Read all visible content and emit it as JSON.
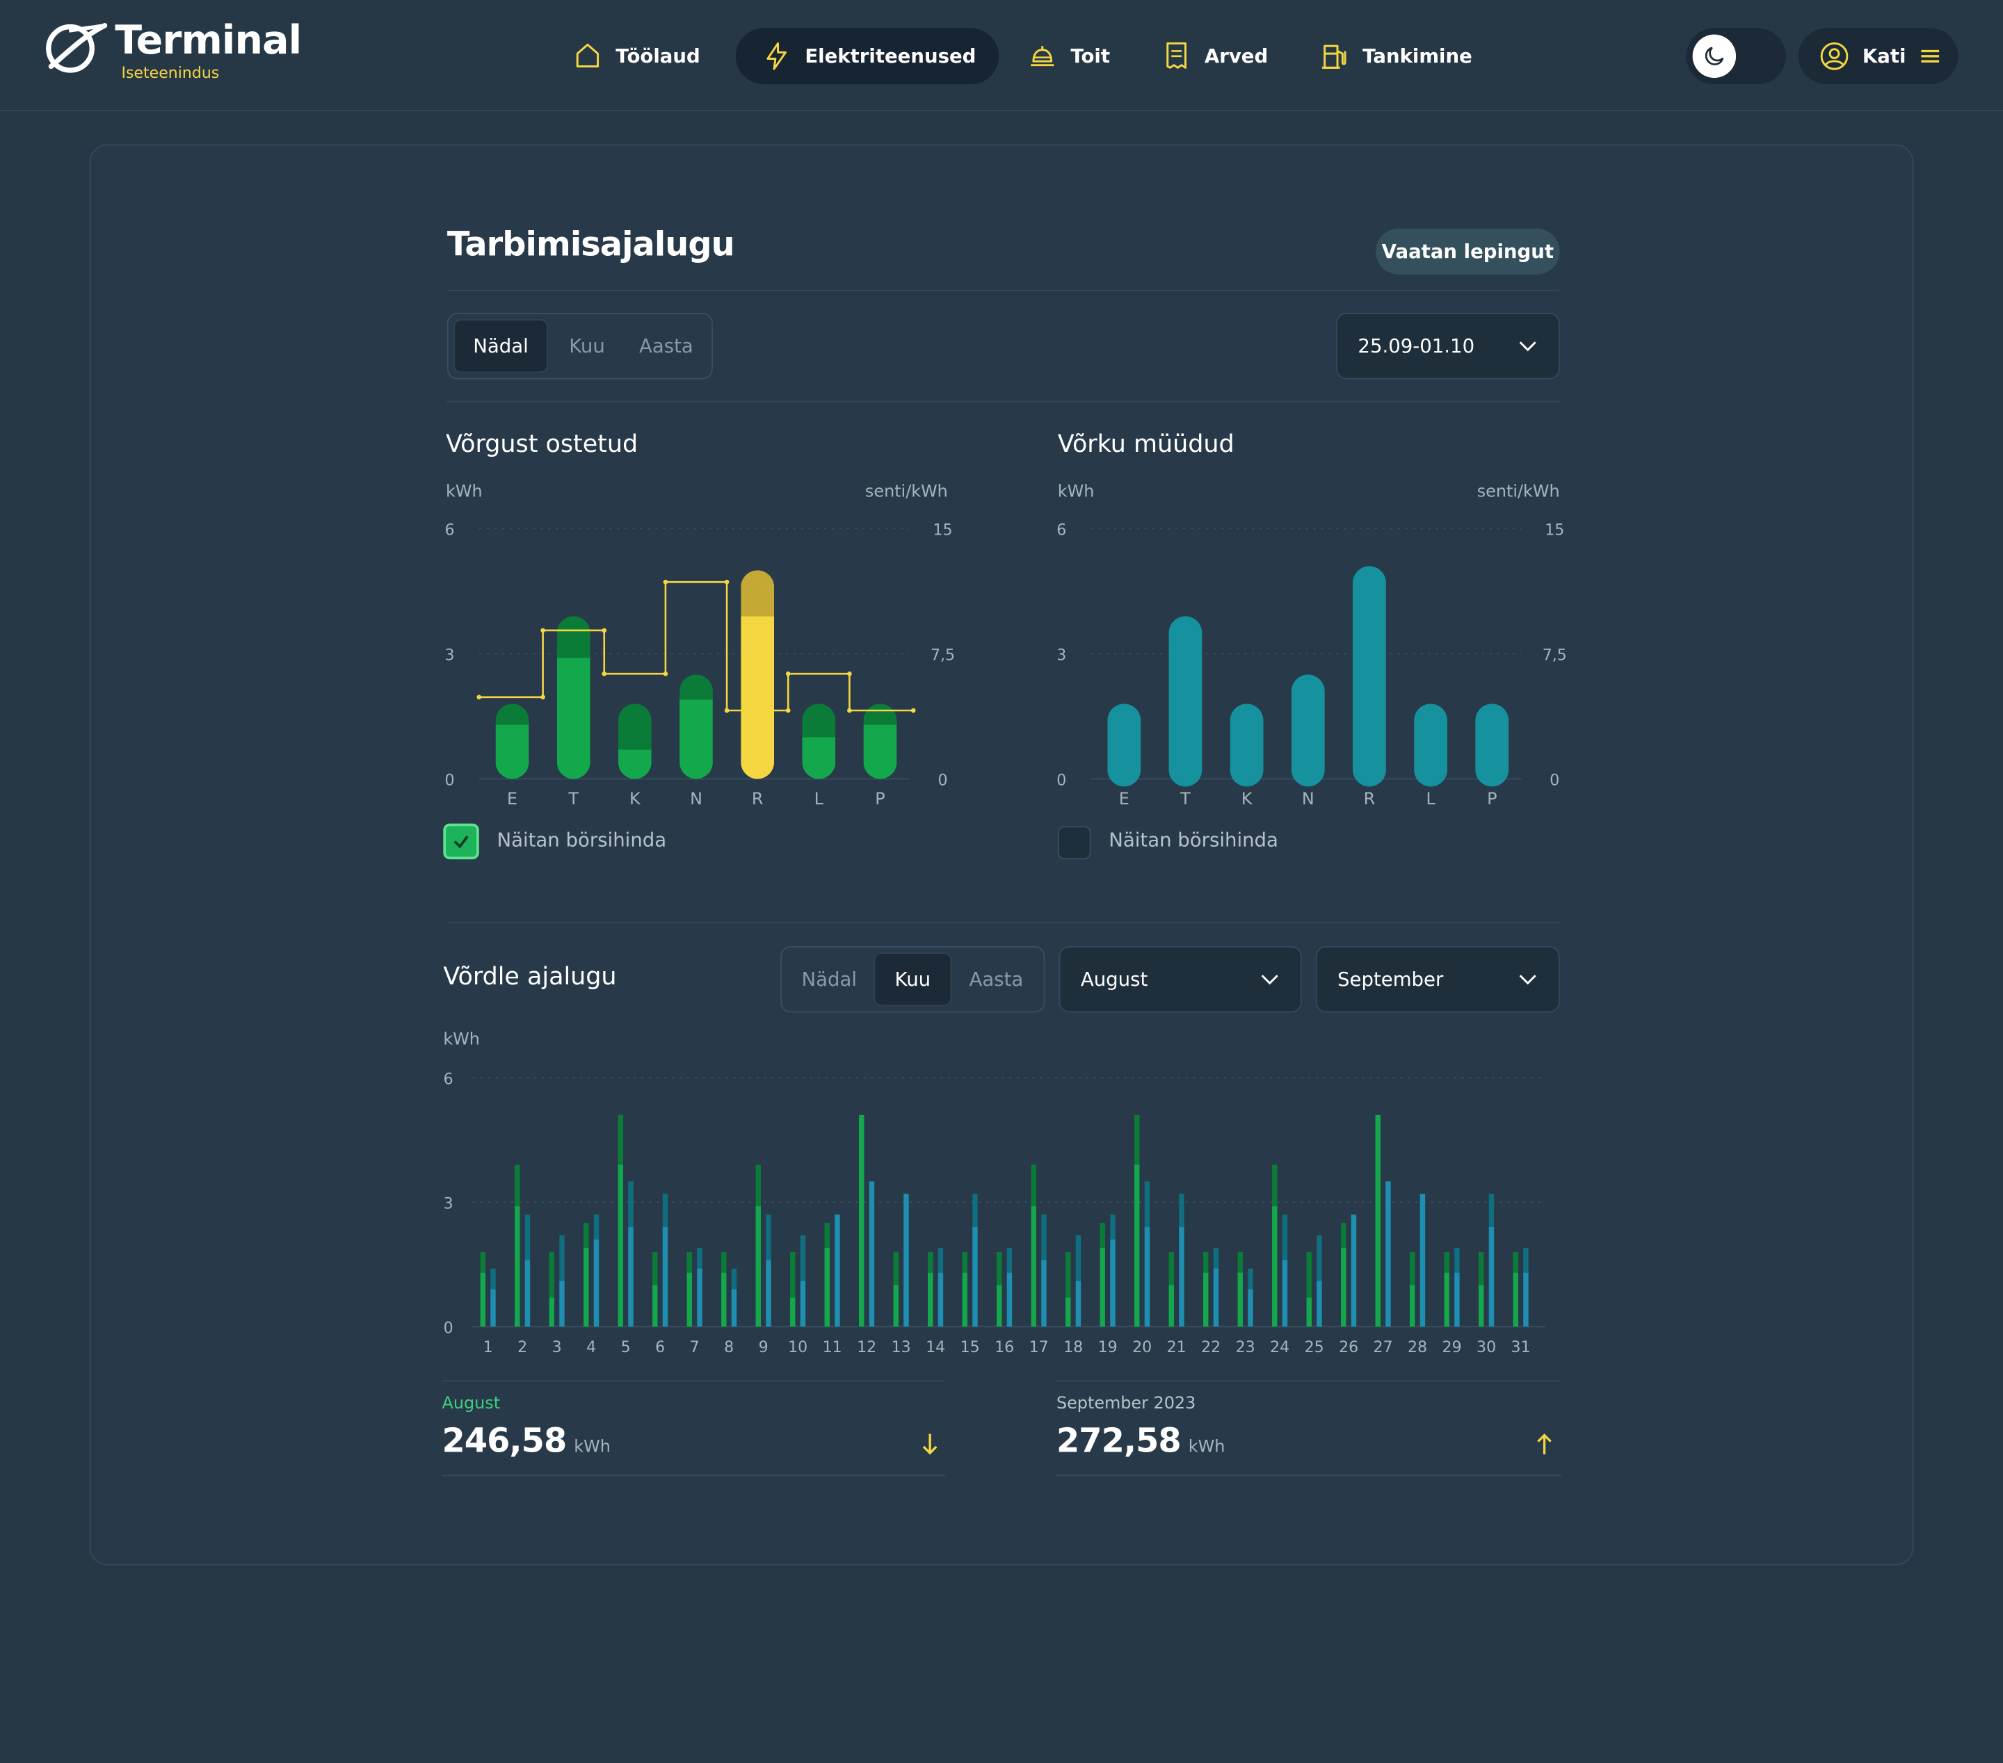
{
  "brand": {
    "name": "Terminal",
    "subtitle": "Iseteenindus"
  },
  "nav": [
    {
      "label": "Töölaud",
      "icon": "home-icon",
      "active": false
    },
    {
      "label": "Elektriteenused",
      "icon": "bolt-icon",
      "active": true
    },
    {
      "label": "Toit",
      "icon": "cloche-icon",
      "active": false
    },
    {
      "label": "Arved",
      "icon": "receipt-icon",
      "active": false
    },
    {
      "label": "Tankimine",
      "icon": "fuel-pump-icon",
      "active": false
    }
  ],
  "user": {
    "name": "Kati",
    "icon": "user-icon",
    "menu_icon": "hamburger-icon"
  },
  "theme_icon": "moon-icon",
  "page": {
    "title": "Tarbimisajalugu",
    "contract_button": "Vaatan lepingut",
    "period_tabs": [
      "Nädal",
      "Kuu",
      "Aasta"
    ],
    "period_selected": "Nädal",
    "date_range": "25.09-01.10"
  },
  "bought": {
    "title": "Võrgust ostetud",
    "left_unit": "kWh",
    "right_unit": "senti/kWh",
    "checkbox_label": "Näitan börsihinda",
    "checked": true
  },
  "sold": {
    "title": "Võrku müüdud",
    "left_unit": "kWh",
    "right_unit": "senti/kWh",
    "checkbox_label": "Näitan börsihinda",
    "checked": false
  },
  "compare": {
    "title": "Võrdle ajalugu",
    "tabs": [
      "Nädal",
      "Kuu",
      "Aasta"
    ],
    "tab_selected": "Kuu",
    "month_a": "August",
    "month_b": "September",
    "unit": "kWh",
    "summary": [
      {
        "label": "August",
        "value": "246,58",
        "unit": "kWh",
        "trend": "down",
        "label_color": "#3fcf7a"
      },
      {
        "label": "September 2023",
        "value": "272,58",
        "unit": "kWh",
        "trend": "up",
        "label_color": "#b8c2cb"
      }
    ]
  },
  "colors": {
    "green": "#13a84b",
    "green_dark": "#0b7c38",
    "yellow": "#f5d741",
    "yellow_dark": "#c4aa35",
    "teal": "#15929d",
    "teal_dark": "#0f6f80",
    "blue": "#1e8fb0"
  },
  "chart_data": [
    {
      "type": "bar",
      "title": "Võrgust ostetud",
      "categories": [
        "E",
        "T",
        "K",
        "N",
        "R",
        "L",
        "P"
      ],
      "y_left_label": "kWh",
      "y_right_label": "senti/kWh",
      "y_ticks": [
        "0",
        "3",
        "6"
      ],
      "y2_ticks": [
        "0",
        "7,5",
        "15"
      ],
      "ylim": [
        0,
        6
      ],
      "y2lim": [
        0,
        15
      ],
      "highlighted_category": "R",
      "series": [
        {
          "values": [
            1.3,
            2.9,
            0.7,
            1.9,
            3.9,
            1.0,
            1.3
          ]
        },
        {
          "values": [
            0.5,
            1.0,
            1.1,
            0.6,
            1.1,
            0.8,
            0.5
          ]
        }
      ],
      "price_step": [
        4.9,
        8.9,
        6.3,
        11.8,
        4.1,
        6.3,
        4.1
      ],
      "show_price": true
    },
    {
      "type": "bar",
      "title": "Võrku müüdud",
      "categories": [
        "E",
        "T",
        "K",
        "N",
        "R",
        "L",
        "P"
      ],
      "y_left_label": "kWh",
      "y_right_label": "senti/kWh",
      "y_ticks": [
        "0",
        "3",
        "6"
      ],
      "y2_ticks": [
        "0",
        "7,5",
        "15"
      ],
      "ylim": [
        0,
        6
      ],
      "y2lim": [
        0,
        15
      ],
      "series": [
        {
          "values": [
            1.8,
            3.9,
            1.8,
            2.5,
            5.1,
            1.8,
            1.8
          ]
        }
      ],
      "show_price": false
    },
    {
      "type": "bar",
      "title": "Võrdle ajalugu",
      "y_label": "kWh",
      "y_ticks": [
        "0",
        "3",
        "6"
      ],
      "ylim": [
        0,
        6
      ],
      "categories": [
        "1",
        "2",
        "3",
        "4",
        "5",
        "6",
        "7",
        "8",
        "9",
        "10",
        "11",
        "12",
        "13",
        "14",
        "15",
        "16",
        "17",
        "18",
        "19",
        "20",
        "21",
        "22",
        "23",
        "24",
        "25",
        "26",
        "27",
        "28",
        "29",
        "30",
        "31"
      ],
      "series": [
        {
          "name": "August",
          "values": [
            1.8,
            3.9,
            1.8,
            2.5,
            5.1,
            1.8,
            1.8,
            1.8,
            3.9,
            1.8,
            2.5,
            5.1,
            1.8,
            1.8,
            1.8,
            1.8,
            3.9,
            1.8,
            2.5,
            5.1,
            1.8,
            1.8,
            1.8,
            3.9,
            1.8,
            2.5,
            5.1,
            1.8,
            1.8,
            1.8,
            1.8
          ],
          "inner": [
            1.3,
            2.9,
            0.7,
            1.9,
            3.9,
            1.0,
            1.3,
            1.3,
            2.9,
            0.7,
            1.9,
            5.1,
            1.0,
            1.3,
            1.3,
            1.0,
            2.9,
            0.7,
            1.9,
            3.9,
            1.0,
            1.3,
            1.3,
            2.9,
            0.7,
            1.9,
            5.1,
            1.0,
            1.3,
            1.0,
            1.3
          ]
        },
        {
          "name": "September",
          "values": [
            1.4,
            2.7,
            2.2,
            2.7,
            3.5,
            3.2,
            1.9,
            1.4,
            2.7,
            2.2,
            2.7,
            3.5,
            3.2,
            1.9,
            3.2,
            1.9,
            2.7,
            2.2,
            2.7,
            3.5,
            3.2,
            1.9,
            1.4,
            2.7,
            2.2,
            2.7,
            3.5,
            3.2,
            1.9,
            3.2,
            1.9
          ],
          "inner": [
            0.9,
            1.6,
            1.1,
            2.1,
            2.4,
            2.4,
            1.4,
            0.9,
            1.6,
            1.1,
            2.7,
            3.5,
            3.2,
            1.3,
            2.4,
            1.3,
            1.6,
            1.1,
            2.1,
            2.4,
            2.4,
            1.4,
            0.9,
            1.6,
            1.1,
            2.7,
            3.5,
            3.2,
            1.3,
            2.4,
            1.3
          ]
        }
      ]
    }
  ]
}
